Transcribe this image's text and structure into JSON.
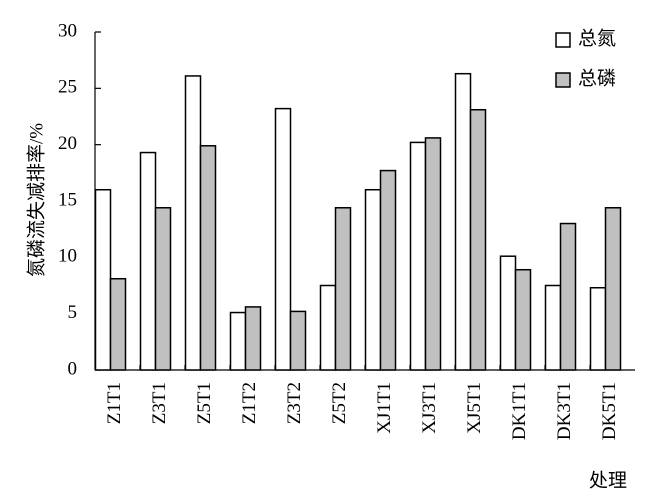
{
  "chart_data": {
    "type": "bar",
    "y_label": "氮磷流失减排率/%",
    "x_label": "处理",
    "categories": [
      "Z1T1",
      "Z3T1",
      "Z5T1",
      "Z1T2",
      "Z3T2",
      "Z5T2",
      "XJ1T1",
      "XJ3T1",
      "XJ5T1",
      "DK1T1",
      "DK3T1",
      "DK5T1"
    ],
    "series": [
      {
        "name": "总氮",
        "color": "#ffffff",
        "values": [
          16.0,
          19.3,
          26.1,
          5.1,
          23.2,
          7.5,
          16.0,
          20.2,
          26.3,
          10.1,
          7.5,
          7.3
        ]
      },
      {
        "name": "总磷",
        "color": "#c0c0c0",
        "values": [
          8.1,
          14.4,
          19.9,
          5.6,
          5.2,
          14.4,
          17.7,
          20.6,
          23.1,
          8.9,
          13.0,
          14.4
        ]
      }
    ],
    "ylim": [
      0,
      30
    ],
    "yticks": [
      0,
      5,
      10,
      15,
      20,
      25,
      30
    ],
    "legend": "top-right"
  }
}
